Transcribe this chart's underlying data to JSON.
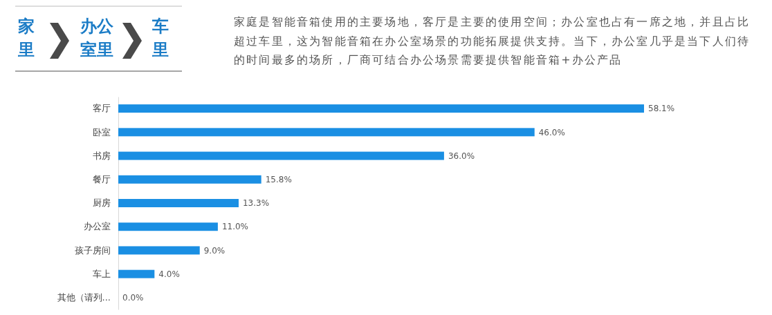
{
  "chart_data": {
    "type": "bar",
    "orientation": "horizontal",
    "subtitle": "家庭是智能音箱使用的主要场地，客厅是主要的使用空间；办公室也占有一席之地，并且占比超过车里，这为智能音箱在办公室场景的功能拓展提供支持。当下，办公室几乎是当下人们待的时间最多的场所，厂商可结合办公场景需要提供智能音箱+办公产品",
    "annotations": [
      "家里",
      "办公室里",
      "车里"
    ],
    "categories": [
      "客厅",
      "卧室",
      "书房",
      "餐厅",
      "厨房",
      "办公室",
      "孩子房间",
      "车上",
      "其他（请列..."
    ],
    "values": [
      58.1,
      46.0,
      36.0,
      15.8,
      13.3,
      11.0,
      9.0,
      4.0,
      0.0
    ],
    "value_labels": [
      "58.1%",
      "46.0%",
      "36.0%",
      "15.8%",
      "13.3%",
      "11.0%",
      "9.0%",
      "4.0%",
      "0.0%"
    ],
    "color": "#1a8fe3",
    "tick_labels": "y"
  }
}
